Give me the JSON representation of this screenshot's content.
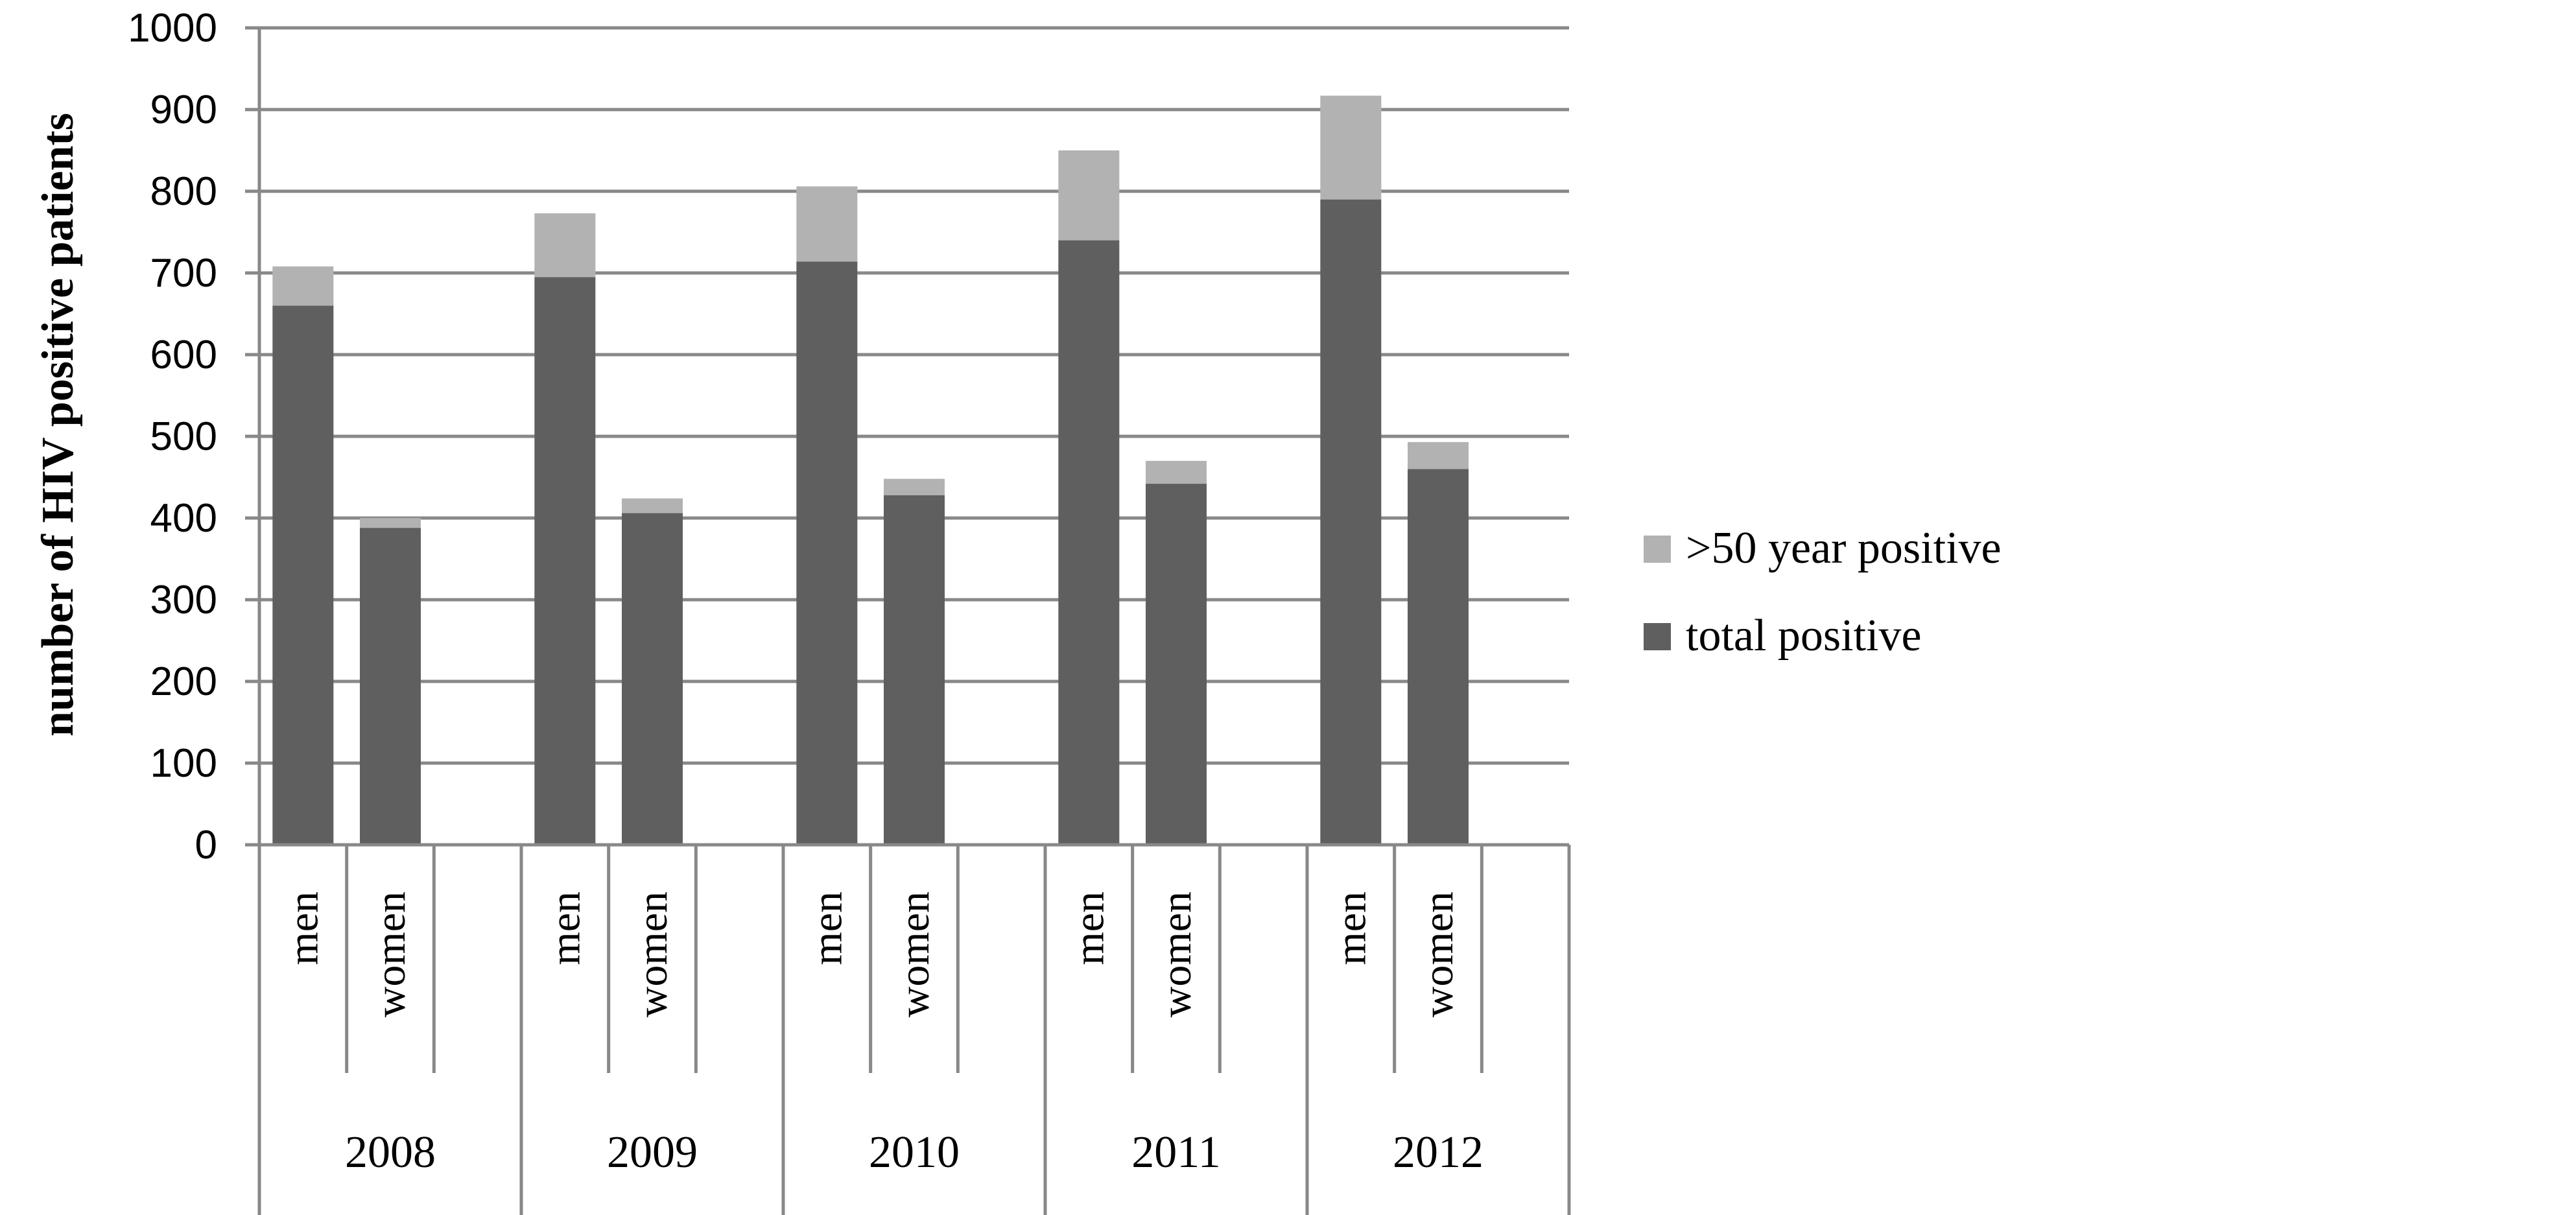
{
  "chart_data": {
    "type": "bar",
    "stacked": true,
    "ylabel": "number of HIV positive  patients",
    "ylim": [
      0,
      1000
    ],
    "yticks": [
      "0",
      "100",
      "200",
      "300",
      "400",
      "500",
      "600",
      "700",
      "800",
      "900",
      "1000"
    ],
    "grid": true,
    "legend_position": "right",
    "groups": [
      {
        "label": "2008",
        "categories": [
          "men",
          "women"
        ]
      },
      {
        "label": "2009",
        "categories": [
          "men",
          "women"
        ]
      },
      {
        "label": "2010",
        "categories": [
          "men",
          "women"
        ]
      },
      {
        "label": "2011",
        "categories": [
          "men",
          "women"
        ]
      },
      {
        "label": "2012",
        "categories": [
          "men",
          "women"
        ]
      }
    ],
    "series": [
      {
        "name": "total positive",
        "color": "#5f5f5f",
        "values": [
          [
            660,
            388
          ],
          [
            695,
            406
          ],
          [
            714,
            428
          ],
          [
            740,
            442
          ],
          [
            790,
            460
          ]
        ]
      },
      {
        "name": ">50 year positive",
        "color": "#b2b2b2",
        "values": [
          [
            48,
            12
          ],
          [
            78,
            18
          ],
          [
            92,
            20
          ],
          [
            110,
            28
          ],
          [
            127,
            33
          ]
        ]
      }
    ],
    "legend": [
      {
        "label": ">50 year positive",
        "color": "#b2b2b2"
      },
      {
        "label": "total positive",
        "color": "#5f5f5f"
      }
    ]
  }
}
